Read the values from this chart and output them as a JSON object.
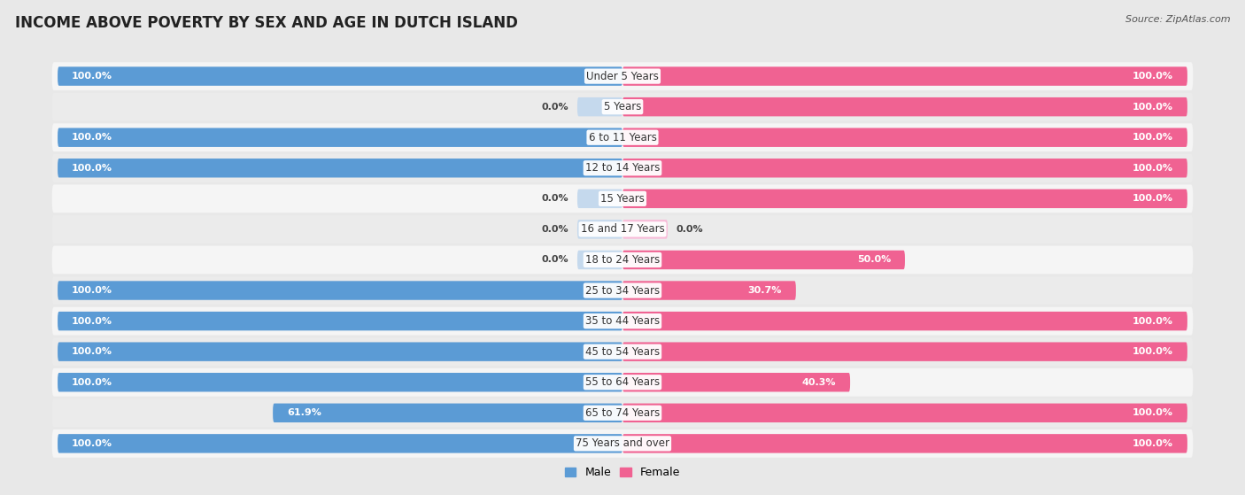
{
  "title": "INCOME ABOVE POVERTY BY SEX AND AGE IN DUTCH ISLAND",
  "source": "Source: ZipAtlas.com",
  "categories": [
    "Under 5 Years",
    "5 Years",
    "6 to 11 Years",
    "12 to 14 Years",
    "15 Years",
    "16 and 17 Years",
    "18 to 24 Years",
    "25 to 34 Years",
    "35 to 44 Years",
    "45 to 54 Years",
    "55 to 64 Years",
    "65 to 74 Years",
    "75 Years and over"
  ],
  "male_values": [
    100.0,
    0.0,
    100.0,
    100.0,
    0.0,
    0.0,
    0.0,
    100.0,
    100.0,
    100.0,
    100.0,
    61.9,
    100.0
  ],
  "female_values": [
    100.0,
    100.0,
    100.0,
    100.0,
    100.0,
    0.0,
    50.0,
    30.7,
    100.0,
    100.0,
    40.3,
    100.0,
    100.0
  ],
  "male_color": "#5b9bd5",
  "male_color_light": "#c5d9ed",
  "female_color": "#f06292",
  "female_color_light": "#f8bbd8",
  "bg_color": "#e8e8e8",
  "row_bg_even": "#f5f5f5",
  "row_bg_odd": "#ebebeb",
  "bar_height": 0.62,
  "title_fontsize": 12,
  "label_fontsize": 8.5,
  "value_fontsize": 8,
  "legend_fontsize": 9,
  "source_fontsize": 8
}
